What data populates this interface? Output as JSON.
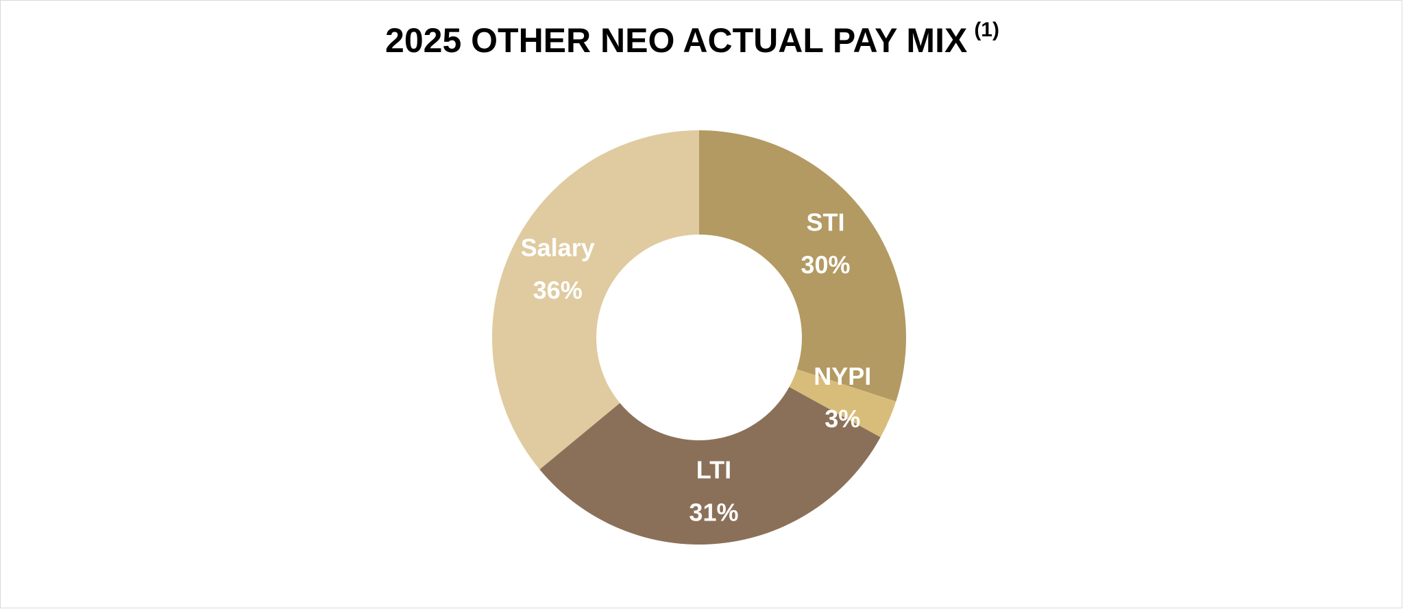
{
  "chart_data": {
    "type": "donut",
    "title": "2025 OTHER NEO ACTUAL PAY MIX",
    "title_note": "(1)",
    "categories": [
      "STI",
      "NYPI",
      "LTI",
      "Salary"
    ],
    "values": [
      30,
      3,
      31,
      36
    ],
    "value_labels": [
      "30%",
      "3%",
      "31%",
      "36%"
    ],
    "colors": [
      "#b39a62",
      "#d8bd7a",
      "#8b7059",
      "#dfcb9f"
    ]
  }
}
